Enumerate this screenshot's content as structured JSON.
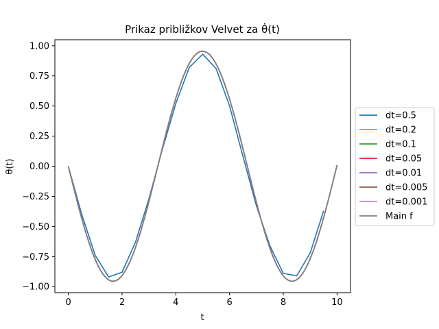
{
  "chart_data": {
    "type": "line",
    "title": "Prikaz približkov Velvet za θ̇(t)",
    "xlabel": "t",
    "ylabel": "θ(t)",
    "xlim": [
      -0.5,
      10.5
    ],
    "ylim": [
      -1.05,
      1.05
    ],
    "xticks": [
      "0",
      "2",
      "4",
      "6",
      "8",
      "10"
    ],
    "yticks": [
      "1.00",
      "0.75",
      "0.50",
      "0.25",
      "0.00",
      "−0.25",
      "−0.50",
      "−0.75",
      "−1.00"
    ],
    "legend_position": "center-right outside",
    "grid": false,
    "series": [
      {
        "name": "dt=0.5",
        "color": "#1f77b4",
        "x": [
          0,
          0.5,
          1.0,
          1.5,
          2.0,
          2.5,
          3.0,
          3.5,
          4.0,
          4.5,
          5.0,
          5.5,
          6.0,
          6.5,
          7.0,
          7.5,
          8.0,
          8.5,
          9.0,
          9.5
        ],
        "y": [
          0.0,
          -0.4,
          -0.74,
          -0.92,
          -0.88,
          -0.63,
          -0.27,
          0.14,
          0.52,
          0.82,
          0.93,
          0.81,
          0.5,
          0.08,
          -0.33,
          -0.66,
          -0.89,
          -0.91,
          -0.72,
          -0.37
        ]
      },
      {
        "name": "dt=0.2",
        "color": "#ff7f0e",
        "x": [],
        "y": []
      },
      {
        "name": "dt=0.1",
        "color": "#2ca02c",
        "x": [],
        "y": []
      },
      {
        "name": "dt=0.05",
        "color": "#d62728",
        "x": [],
        "y": []
      },
      {
        "name": "dt=0.01",
        "color": "#9467bd",
        "x": [],
        "y": []
      },
      {
        "name": "dt=0.005",
        "color": "#8c564b",
        "x": [],
        "y": []
      },
      {
        "name": "dt=0.001",
        "color": "#e377c2",
        "x": [],
        "y": []
      },
      {
        "name": "Main f",
        "color": "#7f7f7f",
        "x": [],
        "y": []
      }
    ]
  }
}
